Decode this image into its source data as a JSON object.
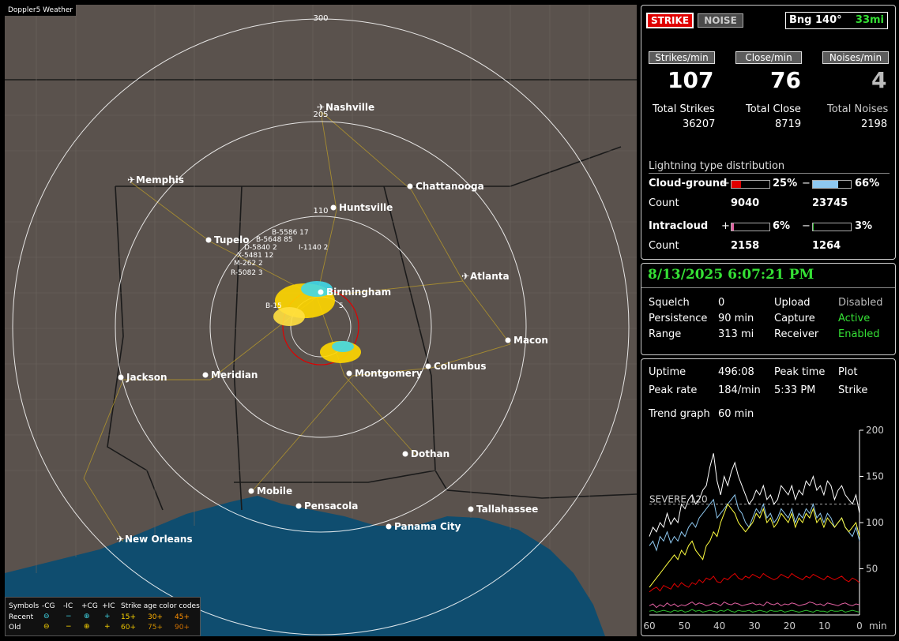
{
  "map": {
    "title": "Doppler5 Weather",
    "range_labels": [
      "300",
      "205",
      "110"
    ],
    "cities": [
      {
        "name": "Nashville",
        "airport": true
      },
      {
        "name": "Memphis",
        "airport": true
      },
      {
        "name": "Chattanooga",
        "airport": false
      },
      {
        "name": "Huntsville",
        "airport": false
      },
      {
        "name": "Tupelo",
        "airport": false
      },
      {
        "name": "Atlanta",
        "airport": true
      },
      {
        "name": "Birmingham",
        "airport": false
      },
      {
        "name": "Macon",
        "airport": false
      },
      {
        "name": "Jackson",
        "airport": false
      },
      {
        "name": "Meridian",
        "airport": false
      },
      {
        "name": "Montgomery",
        "airport": false
      },
      {
        "name": "Columbus",
        "airport": false
      },
      {
        "name": "Dothan",
        "airport": false
      },
      {
        "name": "Mobile",
        "airport": false
      },
      {
        "name": "Pensacola",
        "airport": false
      },
      {
        "name": "Tallahassee",
        "airport": false
      },
      {
        "name": "Panama City",
        "airport": false
      },
      {
        "name": "New Orleans",
        "airport": true
      }
    ],
    "storm_labels": [
      "B-5586 17",
      "B-5648 85",
      "D-5840 2",
      "X-5481 12",
      "I-1140 2",
      "M-262 2",
      "R-5082 3",
      "B-15",
      "5"
    ]
  },
  "legend": {
    "symbols_label": "Symbols",
    "columns": [
      "-CG",
      "-IC",
      "+CG",
      "+IC"
    ],
    "recent_label": "Recent",
    "old_label": "Old",
    "age_title": "Strike age color codes",
    "recent_ages": [
      "15+",
      "30+",
      "45+"
    ],
    "old_ages": [
      "60+",
      "75+",
      "90+"
    ],
    "age_colors_recent": [
      "#ffd700",
      "#ffb000",
      "#ff9000"
    ],
    "age_colors_old": [
      "#e8c000",
      "#d09000",
      "#d07000"
    ]
  },
  "panel1": {
    "strike_btn": "STRIKE",
    "noise_btn": "NOISE",
    "bearing_label": "Bng 140°",
    "bearing_dist": "33mi",
    "rate_labels": [
      "Strikes/min",
      "Close/min",
      "Noises/min"
    ],
    "rates": [
      "107",
      "76",
      "4"
    ],
    "total_labels": [
      "Total Strikes",
      "Total Close",
      "Total Noises"
    ],
    "totals": [
      "36207",
      "8719",
      "2198"
    ],
    "dist_title": "Lightning type distribution",
    "cg_label": "Cloud-ground",
    "ic_label": "Intracloud",
    "count_label": "Count",
    "plus": "+",
    "minus": "−",
    "cg_pos_pct": "25%",
    "cg_neg_pct": "66%",
    "ic_pos_pct": "6%",
    "ic_neg_pct": "3%",
    "cg_pos_count": "9040",
    "cg_neg_count": "23745",
    "ic_pos_count": "2158",
    "ic_neg_count": "1264",
    "cg_pos_frac": 0.25,
    "cg_neg_frac": 0.66,
    "ic_pos_frac": 0.06,
    "ic_neg_frac": 0.03,
    "colors": {
      "cg_pos": "#e00000",
      "cg_neg": "#8ec8f0",
      "ic_pos": "#e060a0",
      "ic_neg": "#30c030"
    }
  },
  "panel2": {
    "datetime": "8/13/2025 6:07:21 PM",
    "labels": [
      "Squelch",
      "Persistence",
      "Range"
    ],
    "values": [
      "0",
      "90 min",
      "313 mi"
    ],
    "labels2": [
      "Upload",
      "Capture",
      "Receiver"
    ],
    "values2": [
      "Disabled",
      "Active",
      "Enabled"
    ]
  },
  "panel3": {
    "uptime_label": "Uptime",
    "uptime": "496:08",
    "peak_time_label": "Peak time",
    "plot_label": "Plot",
    "peak_rate_label": "Peak rate",
    "peak_rate": "184/min",
    "peak_time": "5:33 PM",
    "plot_value": "Strike",
    "trend_label": "Trend graph",
    "trend_value": "60 min",
    "severe_label": "SEVERE 120"
  },
  "chart_data": {
    "type": "line",
    "x_label": "min",
    "xlim": [
      60,
      0
    ],
    "x_ticks": [
      "60",
      "50",
      "40",
      "30",
      "20",
      "10",
      "0"
    ],
    "ylim": [
      0,
      200
    ],
    "y_ticks": [
      "200",
      "150",
      "100",
      "50"
    ],
    "severe_threshold": 120,
    "series": [
      {
        "color": "#ffffff",
        "values": [
          85,
          95,
          90,
          100,
          95,
          110,
          98,
          105,
          100,
          120,
          115,
          125,
          130,
          120,
          125,
          135,
          140,
          160,
          175,
          145,
          130,
          150,
          140,
          155,
          165,
          150,
          140,
          130,
          120,
          125,
          135,
          130,
          140,
          125,
          130,
          120,
          125,
          140,
          135,
          130,
          140,
          125,
          135,
          130,
          145,
          140,
          150,
          135,
          140,
          130,
          145,
          140,
          125,
          135,
          140,
          130,
          125,
          120,
          130,
          110
        ]
      },
      {
        "color": "#8ec8f0",
        "values": [
          75,
          80,
          70,
          85,
          80,
          90,
          78,
          85,
          80,
          90,
          85,
          95,
          100,
          95,
          105,
          110,
          115,
          120,
          125,
          105,
          110,
          115,
          120,
          125,
          130,
          115,
          110,
          100,
          95,
          105,
          115,
          110,
          120,
          105,
          110,
          100,
          105,
          115,
          110,
          105,
          115,
          100,
          110,
          105,
          115,
          110,
          120,
          105,
          110,
          100,
          110,
          105,
          95,
          100,
          105,
          95,
          90,
          85,
          95,
          80
        ]
      },
      {
        "color": "#ffff40",
        "values": [
          30,
          35,
          40,
          45,
          50,
          55,
          60,
          65,
          60,
          70,
          65,
          75,
          80,
          70,
          65,
          60,
          75,
          80,
          90,
          85,
          100,
          110,
          120,
          115,
          110,
          100,
          95,
          90,
          95,
          100,
          110,
          105,
          115,
          100,
          105,
          95,
          100,
          110,
          105,
          100,
          110,
          95,
          105,
          100,
          110,
          105,
          115,
          100,
          105,
          95,
          105,
          100,
          95,
          100,
          105,
          95,
          90,
          95,
          100,
          85
        ]
      },
      {
        "color": "#e00000",
        "values": [
          25,
          28,
          30,
          26,
          32,
          30,
          28,
          34,
          30,
          35,
          32,
          30,
          35,
          33,
          38,
          35,
          40,
          38,
          42,
          36,
          35,
          40,
          38,
          42,
          45,
          40,
          38,
          42,
          40,
          44,
          42,
          40,
          45,
          42,
          40,
          38,
          40,
          44,
          42,
          40,
          45,
          42,
          40,
          38,
          42,
          40,
          44,
          42,
          40,
          38,
          42,
          40,
          38,
          40,
          42,
          38,
          36,
          40,
          38,
          35
        ]
      },
      {
        "color": "#e060a0",
        "values": [
          10,
          12,
          8,
          11,
          9,
          13,
          10,
          12,
          9,
          11,
          10,
          12,
          14,
          11,
          13,
          12,
          10,
          11,
          13,
          12,
          10,
          14,
          12,
          11,
          13,
          12,
          10,
          11,
          12,
          13,
          11,
          12,
          10,
          14,
          12,
          11,
          13,
          10,
          12,
          11,
          13,
          12,
          10,
          11,
          12,
          14,
          13,
          11,
          12,
          10,
          13,
          12,
          11,
          10,
          12,
          13,
          11,
          10,
          12,
          11
        ]
      },
      {
        "color": "#30c030",
        "values": [
          4,
          5,
          3,
          4,
          5,
          4,
          3,
          5,
          4,
          5,
          3,
          4,
          6,
          4,
          5,
          3,
          4,
          5,
          4,
          3,
          5,
          4,
          6,
          4,
          3,
          5,
          4,
          4,
          5,
          3,
          4,
          5,
          4,
          3,
          5,
          4,
          4,
          5,
          3,
          4,
          5,
          4,
          3,
          4,
          5,
          4,
          3,
          5,
          4,
          4,
          3,
          5,
          4,
          4,
          5,
          3,
          4,
          5,
          4,
          3
        ]
      }
    ]
  }
}
